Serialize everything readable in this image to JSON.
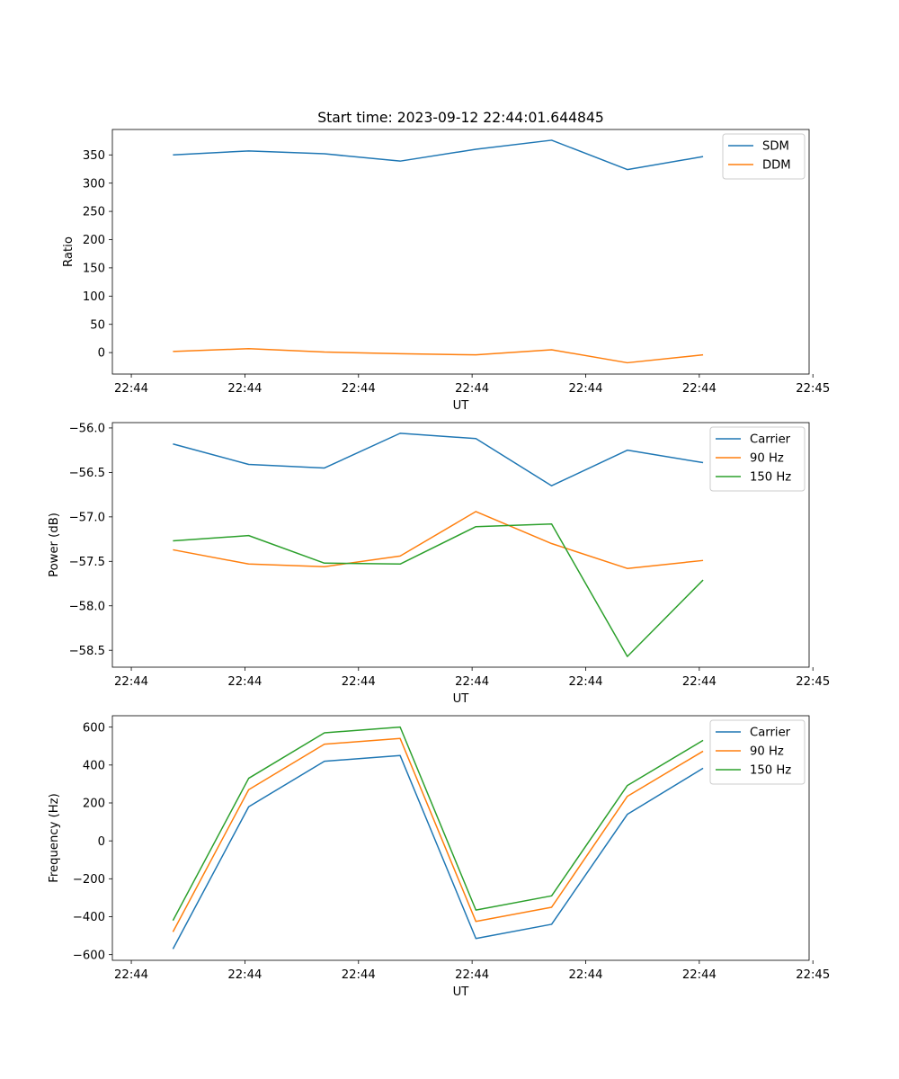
{
  "title": "Start time: 2023-09-12 22:44:01.644845",
  "colors": {
    "blue": "#1f77b4",
    "orange": "#ff7f0e",
    "green": "#2ca02c"
  },
  "chart_data": [
    {
      "type": "line",
      "title": "Start time: 2023-09-12 22:44:01.644845",
      "xlabel": "UT",
      "ylabel": "Ratio",
      "x": [
        1,
        2,
        3,
        4,
        5,
        6,
        7,
        8
      ],
      "xlim": [
        0.2,
        9.4
      ],
      "xticks": [
        0.45,
        1.95,
        3.45,
        4.95,
        6.45,
        7.95,
        9.45
      ],
      "xtick_labels": [
        "22:44",
        "22:44",
        "22:44",
        "22:44",
        "22:44",
        "22:44",
        "22:45"
      ],
      "ylim": [
        -38,
        395
      ],
      "yticks": [
        0,
        50,
        100,
        150,
        200,
        250,
        300,
        350
      ],
      "ytick_labels": [
        "0",
        "50",
        "100",
        "150",
        "200",
        "250",
        "300",
        "350"
      ],
      "legend_position": "top-right",
      "series": [
        {
          "name": "SDM",
          "color": "#1f77b4",
          "values": [
            350,
            357,
            352,
            339,
            360,
            376,
            324,
            347
          ]
        },
        {
          "name": "DDM",
          "color": "#ff7f0e",
          "values": [
            2,
            7,
            1,
            -2,
            -4,
            5,
            -18,
            -4
          ]
        }
      ]
    },
    {
      "type": "line",
      "title": "",
      "xlabel": "UT",
      "ylabel": "Power (dB)",
      "x": [
        1,
        2,
        3,
        4,
        5,
        6,
        7,
        8
      ],
      "xlim": [
        0.2,
        9.4
      ],
      "xticks": [
        0.45,
        1.95,
        3.45,
        4.95,
        6.45,
        7.95,
        9.45
      ],
      "xtick_labels": [
        "22:44",
        "22:44",
        "22:44",
        "22:44",
        "22:44",
        "22:44",
        "22:45"
      ],
      "ylim": [
        -58.69,
        -55.94
      ],
      "yticks": [
        -56.0,
        -56.5,
        -57.0,
        -57.5,
        -58.0,
        -58.5
      ],
      "ytick_labels": [
        "−56.0",
        "−56.5",
        "−57.0",
        "−57.5",
        "−58.0",
        "−58.5"
      ],
      "legend_position": "top-right",
      "series": [
        {
          "name": "Carrier",
          "color": "#1f77b4",
          "values": [
            -56.18,
            -56.41,
            -56.45,
            -56.06,
            -56.12,
            -56.65,
            -56.25,
            -56.39
          ]
        },
        {
          "name": "90 Hz",
          "color": "#ff7f0e",
          "values": [
            -57.37,
            -57.53,
            -57.56,
            -57.44,
            -56.94,
            -57.3,
            -57.58,
            -57.49
          ]
        },
        {
          "name": "150 Hz",
          "color": "#2ca02c",
          "values": [
            -57.27,
            -57.21,
            -57.52,
            -57.53,
            -57.11,
            -57.08,
            -58.57,
            -57.71
          ]
        }
      ]
    },
    {
      "type": "line",
      "title": "",
      "xlabel": "UT",
      "ylabel": "Frequency (Hz)",
      "x": [
        1,
        2,
        3,
        4,
        5,
        6,
        7,
        8
      ],
      "xlim": [
        0.2,
        9.4
      ],
      "xticks": [
        0.45,
        1.95,
        3.45,
        4.95,
        6.45,
        7.95,
        9.45
      ],
      "xtick_labels": [
        "22:44",
        "22:44",
        "22:44",
        "22:44",
        "22:44",
        "22:44",
        "22:45"
      ],
      "ylim": [
        -630,
        660
      ],
      "yticks": [
        600,
        400,
        200,
        0,
        -200,
        -400,
        -600
      ],
      "ytick_labels": [
        "600",
        "400",
        "200",
        "0",
        "−200",
        "−400",
        "−600"
      ],
      "legend_position": "top-right",
      "series": [
        {
          "name": "Carrier",
          "color": "#1f77b4",
          "values": [
            -570,
            180,
            420,
            450,
            -515,
            -440,
            140,
            383
          ]
        },
        {
          "name": "90 Hz",
          "color": "#ff7f0e",
          "values": [
            -480,
            270,
            510,
            540,
            -425,
            -350,
            235,
            473
          ]
        },
        {
          "name": "150 Hz",
          "color": "#2ca02c",
          "values": [
            -420,
            330,
            570,
            600,
            -365,
            -290,
            292,
            530
          ]
        }
      ]
    }
  ]
}
